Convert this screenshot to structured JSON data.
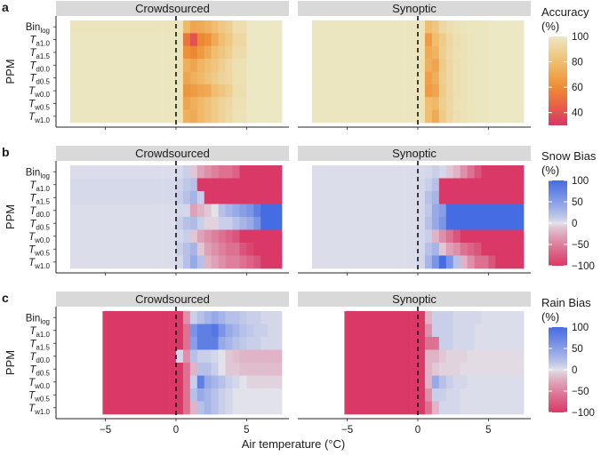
{
  "chart_data": {
    "type": "heatmap",
    "xlabel": "Air temperature (°C)",
    "x_ticks": [
      -5,
      0,
      5
    ],
    "xlim": [
      -8.5,
      8
    ],
    "rows": [
      {
        "main": "Bin",
        "sub": "log"
      },
      {
        "main": "T",
        "sub": "a1.0"
      },
      {
        "main": "T",
        "sub": "a1.5"
      },
      {
        "main": "T",
        "sub": "d0.0"
      },
      {
        "main": "T",
        "sub": "d0.5"
      },
      {
        "main": "T",
        "sub": "w0.0"
      },
      {
        "main": "T",
        "sub": "w0.5"
      },
      {
        "main": "T",
        "sub": "w1.0"
      }
    ],
    "columns": [
      "Crowdsourced",
      "Synoptic"
    ],
    "y_label": "PPM",
    "panels": [
      {
        "letter": "a",
        "legend_title": "Accuracy (%)",
        "legend_title_lines": [
          "Accuracy",
          "(%)"
        ],
        "legend_ticks": [
          100,
          80,
          60,
          40
        ],
        "legend_range": [
          30,
          100
        ],
        "x_ranges": {
          "Crowdsourced": [
            -7.5,
            7.5
          ],
          "Synoptic": [
            -7.5,
            7.5
          ]
        },
        "temp_bins": [
          -1,
          0,
          0.5,
          1,
          1.5,
          2,
          2.5,
          3,
          3.5,
          4,
          5
        ],
        "values": {
          "Crowdsourced": [
            [
              98,
              99,
              78,
              70,
              72,
              75,
              80,
              85,
              88,
              95,
              100
            ],
            [
              99,
              98,
              52,
              40,
              58,
              62,
              72,
              80,
              85,
              92,
              100
            ],
            [
              99,
              98,
              62,
              58,
              65,
              72,
              80,
              84,
              88,
              94,
              100
            ],
            [
              99,
              97,
              74,
              70,
              76,
              80,
              84,
              88,
              92,
              96,
              100
            ],
            [
              99,
              98,
              70,
              74,
              78,
              82,
              86,
              90,
              92,
              96,
              100
            ],
            [
              99,
              98,
              64,
              66,
              70,
              72,
              80,
              84,
              88,
              95,
              100
            ],
            [
              99,
              98,
              70,
              74,
              78,
              82,
              86,
              90,
              92,
              96,
              100
            ],
            [
              99,
              98,
              74,
              72,
              78,
              82,
              86,
              90,
              93,
              97,
              100
            ]
          ],
          "Synoptic": [
            [
              99,
              99,
              80,
              84,
              92,
              95,
              97,
              98,
              99,
              99,
              100
            ],
            [
              99,
              98,
              66,
              80,
              86,
              92,
              95,
              97,
              98,
              99,
              100
            ],
            [
              99,
              98,
              72,
              76,
              88,
              93,
              96,
              97,
              98,
              99,
              100
            ],
            [
              99,
              97,
              74,
              70,
              86,
              92,
              95,
              97,
              98,
              99,
              100
            ],
            [
              99,
              98,
              68,
              74,
              88,
              92,
              95,
              97,
              98,
              99,
              100
            ],
            [
              99,
              98,
              66,
              70,
              86,
              92,
              95,
              97,
              98,
              99,
              100
            ],
            [
              99,
              98,
              80,
              78,
              88,
              92,
              96,
              97,
              98,
              99,
              100
            ],
            [
              99,
              98,
              80,
              72,
              86,
              92,
              95,
              97,
              98,
              99,
              100
            ]
          ]
        }
      },
      {
        "letter": "b",
        "legend_title": "Snow Bias (%)",
        "legend_title_lines": [
          "Snow Bias",
          "(%)"
        ],
        "legend_ticks": [
          100,
          50,
          0,
          -50,
          -100
        ],
        "legend_range": [
          -100,
          100
        ],
        "x_ranges": {
          "Crowdsourced": [
            -7.5,
            7.5
          ],
          "Synoptic": [
            -7.5,
            7.5
          ]
        },
        "temp_bins": [
          -1,
          0,
          0.5,
          1,
          1.5,
          2,
          2.5,
          3,
          3.5,
          4,
          4.5,
          5,
          5.5,
          6,
          6.5,
          7
        ],
        "values": {
          "Crowdsourced": [
            [
              2,
              4,
              10,
              -10,
              -30,
              -40,
              -50,
              -60,
              -60,
              -70,
              -100,
              -100,
              -100,
              -100,
              -100,
              -100
            ],
            [
              4,
              8,
              15,
              20,
              -100,
              -100,
              -100,
              -100,
              -100,
              -100,
              -100,
              -100,
              -100,
              -100,
              -100,
              -100
            ],
            [
              4,
              10,
              20,
              30,
              10,
              -100,
              -100,
              -100,
              -100,
              -100,
              -100,
              -100,
              -100,
              -100,
              -100,
              -100
            ],
            [
              2,
              5,
              5,
              -30,
              -20,
              -10,
              0,
              20,
              30,
              40,
              50,
              60,
              80,
              100,
              100,
              100
            ],
            [
              2,
              10,
              20,
              25,
              10,
              -5,
              -5,
              10,
              10,
              20,
              30,
              40,
              60,
              100,
              100,
              100
            ],
            [
              2,
              5,
              10,
              -10,
              -30,
              -40,
              -50,
              -60,
              -70,
              -80,
              -100,
              -100,
              -100,
              -100,
              -100,
              -100
            ],
            [
              2,
              10,
              20,
              30,
              -10,
              -30,
              -40,
              -50,
              -60,
              -60,
              -80,
              -90,
              -100,
              -100,
              -100,
              -100
            ],
            [
              2,
              5,
              20,
              40,
              20,
              -20,
              -30,
              -40,
              -50,
              -50,
              -60,
              -70,
              -80,
              -100,
              -100,
              -100
            ]
          ],
          "Synoptic": [
            [
              2,
              4,
              5,
              10,
              5,
              -10,
              -20,
              -40,
              -60,
              -80,
              -100,
              -100,
              -100,
              -100,
              -100,
              -100
            ],
            [
              2,
              5,
              10,
              20,
              -100,
              -100,
              -100,
              -100,
              -100,
              -100,
              -100,
              -100,
              -100,
              -100,
              -100,
              -100
            ],
            [
              2,
              5,
              20,
              30,
              -100,
              -100,
              -100,
              -100,
              -100,
              -100,
              -100,
              -100,
              -100,
              -100,
              -100,
              -100
            ],
            [
              2,
              5,
              15,
              40,
              50,
              100,
              100,
              100,
              100,
              100,
              100,
              100,
              100,
              100,
              100,
              100
            ],
            [
              2,
              5,
              20,
              40,
              60,
              100,
              100,
              100,
              100,
              100,
              100,
              100,
              100,
              100,
              100,
              100
            ],
            [
              2,
              5,
              10,
              -20,
              -40,
              -60,
              -80,
              -100,
              -100,
              -100,
              -100,
              -100,
              -100,
              -100,
              -100,
              -100
            ],
            [
              2,
              5,
              20,
              30,
              -10,
              -30,
              -40,
              -60,
              -70,
              -80,
              -100,
              -100,
              -100,
              -100,
              -100,
              -100
            ],
            [
              2,
              5,
              30,
              60,
              100,
              60,
              20,
              -20,
              -40,
              -60,
              -60,
              -80,
              -100,
              -100,
              -100,
              -100
            ]
          ]
        }
      },
      {
        "letter": "c",
        "legend_title": "Rain Bias (%)",
        "legend_title_lines": [
          "Rain Bias",
          "(%)"
        ],
        "legend_ticks": [
          100,
          50,
          0,
          -50,
          -100
        ],
        "legend_range": [
          -100,
          100
        ],
        "x_ranges": {
          "Crowdsourced": [
            -5.2,
            7.5
          ],
          "Synoptic": [
            -5.2,
            7.5
          ]
        },
        "temp_bins": [
          -0.5,
          0,
          0.5,
          1,
          1.5,
          2,
          2.5,
          3,
          3.5,
          4,
          4.5,
          5,
          5.5,
          6,
          6.5,
          7
        ],
        "values": {
          "Crowdsourced": [
            [
              -100,
              -100,
              -40,
              10,
              20,
              30,
              40,
              30,
              20,
              20,
              15,
              10,
              10,
              5,
              5,
              5
            ],
            [
              -100,
              -100,
              -60,
              60,
              80,
              80,
              90,
              60,
              40,
              30,
              20,
              15,
              10,
              10,
              5,
              5
            ],
            [
              -100,
              -100,
              -60,
              50,
              80,
              80,
              80,
              40,
              30,
              20,
              15,
              10,
              10,
              5,
              5,
              5
            ],
            [
              -100,
              5,
              -40,
              20,
              10,
              10,
              5,
              0,
              -10,
              -15,
              -20,
              -20,
              -20,
              -20,
              -20,
              -20
            ],
            [
              -100,
              -100,
              -60,
              -20,
              20,
              20,
              10,
              0,
              -10,
              -10,
              -15,
              -15,
              -15,
              -15,
              -15,
              -15
            ],
            [
              -100,
              -100,
              -60,
              10,
              80,
              40,
              30,
              20,
              10,
              5,
              0,
              -5,
              -5,
              -5,
              -5,
              -5
            ],
            [
              -100,
              -100,
              -60,
              20,
              40,
              30,
              20,
              10,
              5,
              0,
              0,
              0,
              0,
              0,
              0,
              0
            ],
            [
              -100,
              -100,
              -60,
              -20,
              20,
              30,
              20,
              10,
              5,
              0,
              0,
              0,
              0,
              0,
              0,
              0
            ]
          ],
          "Synoptic": [
            [
              -100,
              -100,
              -20,
              10,
              10,
              10,
              5,
              5,
              5,
              5,
              2,
              2,
              2,
              2,
              2,
              2
            ],
            [
              -100,
              -100,
              -40,
              10,
              10,
              10,
              5,
              5,
              5,
              2,
              2,
              2,
              2,
              2,
              2,
              2
            ],
            [
              -100,
              -100,
              -60,
              -60,
              10,
              10,
              5,
              5,
              5,
              2,
              2,
              2,
              2,
              2,
              2,
              2
            ],
            [
              -100,
              -100,
              -20,
              -20,
              -10,
              -5,
              -5,
              -5,
              -2,
              -2,
              -2,
              -2,
              -2,
              -2,
              -2,
              -2
            ],
            [
              -100,
              -100,
              -20,
              -10,
              -5,
              -5,
              -5,
              -2,
              -2,
              -2,
              -2,
              -2,
              -2,
              -2,
              -2,
              -2
            ],
            [
              -100,
              -100,
              -20,
              40,
              20,
              10,
              5,
              5,
              2,
              2,
              2,
              2,
              2,
              2,
              2,
              2
            ],
            [
              -100,
              -100,
              -40,
              10,
              10,
              5,
              5,
              2,
              2,
              2,
              2,
              2,
              2,
              2,
              2,
              2
            ],
            [
              -100,
              -100,
              -60,
              -20,
              5,
              5,
              5,
              2,
              2,
              2,
              2,
              2,
              2,
              2,
              2,
              2
            ]
          ]
        }
      }
    ]
  }
}
